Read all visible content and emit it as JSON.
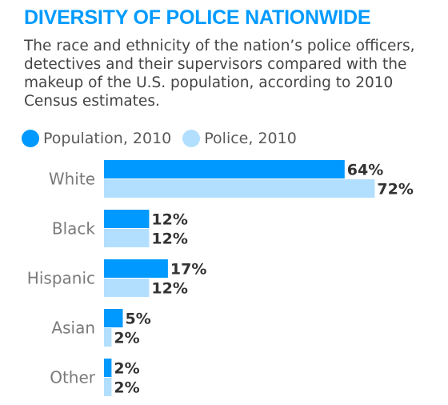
{
  "header": {
    "title": "DIVERSITY OF POLICE NATIONWIDE",
    "subtitle": "The race and ethnicity of the nation’s police officers, detectives and their supervisors compared with the makeup of the U.S. population, according to 2010 Census estimates."
  },
  "colors": {
    "title": "#009BFF",
    "population": "#0099FF",
    "police": "#B3DFFF"
  },
  "chart_data": {
    "type": "bar",
    "orientation": "horizontal",
    "title": "DIVERSITY OF POLICE NATIONWIDE",
    "categories": [
      "White",
      "Black",
      "Hispanic",
      "Asian",
      "Other"
    ],
    "series": [
      {
        "name": "Population, 2010",
        "values": [
          64,
          12,
          17,
          5,
          2
        ],
        "labels": [
          "64%",
          "12%",
          "17%",
          "5%",
          "2%"
        ]
      },
      {
        "name": "Police, 2010",
        "values": [
          72,
          12,
          12,
          2,
          2
        ],
        "labels": [
          "72%",
          "12%",
          "12%",
          "2%",
          "2%"
        ]
      }
    ],
    "unit": "%",
    "legend_position": "top-left",
    "grid": false
  }
}
